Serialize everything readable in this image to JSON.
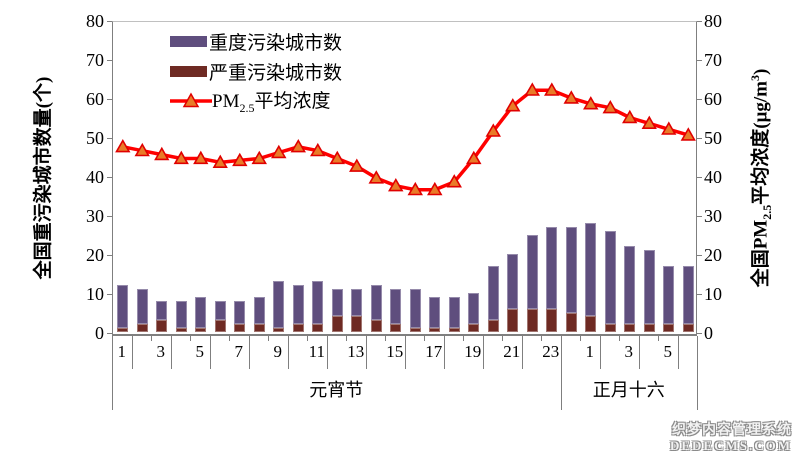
{
  "chart_data": {
    "type": "combo (stacked bar + line)",
    "n_categories": 30,
    "x_labels": [
      "1",
      "",
      "3",
      "",
      "5",
      "",
      "7",
      "",
      "9",
      "",
      "11",
      "",
      "13",
      "",
      "15",
      "",
      "17",
      "",
      "19",
      "",
      "21",
      "",
      "23",
      "",
      "1",
      "",
      "3",
      "",
      "5",
      ""
    ],
    "groups": [
      {
        "label": "元宵节",
        "from": 0,
        "to": 23
      },
      {
        "label": "正月十六",
        "from": 23,
        "to": 30
      }
    ],
    "series": [
      {
        "name": "重度污染城市数",
        "type": "bar",
        "color": "#5f4e7e",
        "values": [
          11,
          9,
          5,
          7,
          8,
          5,
          6,
          7,
          12,
          10,
          11,
          7,
          7,
          9,
          9,
          10,
          8,
          8,
          8,
          14,
          14,
          19,
          21,
          22,
          24,
          24,
          20,
          19,
          15,
          15
        ]
      },
      {
        "name": "严重污染城市数",
        "type": "bar",
        "color": "#6e2a23",
        "values": [
          1,
          2,
          3,
          1,
          1,
          3,
          2,
          2,
          1,
          2,
          2,
          4,
          4,
          3,
          2,
          1,
          1,
          1,
          2,
          3,
          6,
          6,
          6,
          5,
          4,
          2,
          2,
          2,
          2,
          2
        ]
      },
      {
        "name": "PM2.5平均浓度",
        "type": "line",
        "color": "#ff0000",
        "marker": "triangle",
        "marker_fill": "#e97b28",
        "marker_stroke": "#e00000",
        "values": [
          48,
          47,
          46,
          45,
          45,
          44,
          44.5,
          45,
          46.5,
          48,
          47,
          45,
          43,
          40,
          38,
          37,
          37,
          39,
          45,
          52,
          58.5,
          62.5,
          62.5,
          60.5,
          59,
          58,
          55.5,
          54,
          52.5,
          51
        ]
      }
    ],
    "stacked": true,
    "stack_totals": [
      12,
      11,
      8,
      8,
      9,
      8,
      8,
      9,
      13,
      12,
      13,
      11,
      11,
      12,
      11,
      11,
      9,
      9,
      10,
      17,
      20,
      25,
      27,
      27,
      28,
      26,
      22,
      21,
      17,
      17
    ],
    "left_axis": {
      "title": "全国重污染城市数量(个)",
      "min": 0,
      "max": 80,
      "step": 10
    },
    "right_axis": {
      "title_parts": {
        "pre": "全国PM",
        "sub": "2.5",
        "mid": "平均浓度(μg/m",
        "sup": "3",
        "post": ")"
      },
      "title_plain": "全国PM2.5平均浓度(μg/m³)",
      "min": 0,
      "max": 80,
      "step": 10
    },
    "legend_position": "top-left-inside",
    "grid": "off"
  },
  "pm_label_parts": {
    "pre": "PM",
    "sub": "2.5",
    "post": "平均浓度"
  },
  "watermark": {
    "line1": "织梦内容管理系统",
    "line2": "DEDECMS.COM"
  }
}
